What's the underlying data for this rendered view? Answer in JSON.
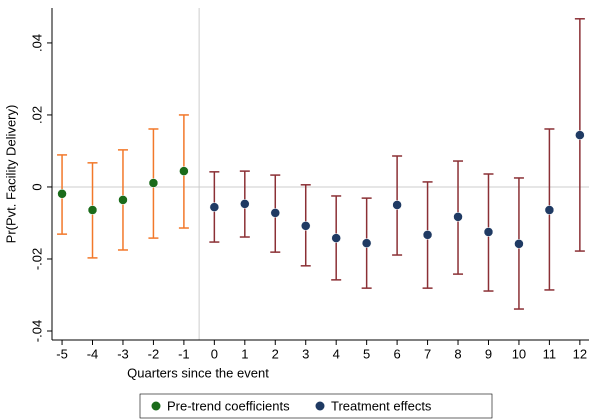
{
  "chart_data": {
    "type": "errorbar",
    "x_label": "Quarters since the event",
    "y_label": "Pr(Pvt. Facility Delivery)",
    "xlim": [
      -5.33,
      12.3
    ],
    "xticks": [
      -5,
      -4,
      -3,
      -2,
      -1,
      0,
      1,
      2,
      3,
      4,
      5,
      6,
      7,
      8,
      9,
      10,
      11,
      12
    ],
    "ylim": [
      -0.0425,
      0.0497
    ],
    "yticks": [
      {
        "value": -0.04,
        "label": "-.04"
      },
      {
        "value": -0.02,
        "label": "-.02"
      },
      0,
      {
        "value": 0.02,
        "label": ".02"
      },
      {
        "value": 0.04,
        "label": ".04"
      }
    ],
    "vline": -0.5,
    "hline": 0,
    "series": [
      {
        "name": "Pre-trend coefficients",
        "color": "#1a6b1a",
        "ci_color": "#f2782a",
        "x": [
          -5,
          -4,
          -3,
          -2,
          -1
        ],
        "values": [
          -0.0019,
          -0.0064,
          -0.0036,
          0.0011,
          0.0044
        ],
        "lower": [
          -0.0131,
          -0.0197,
          -0.0175,
          -0.0142,
          -0.0114
        ],
        "upper": [
          0.0089,
          0.0067,
          0.0103,
          0.0161,
          0.02
        ]
      },
      {
        "name": "Treatment effects",
        "color": "#1f3a63",
        "ci_color": "#8b3035",
        "x": [
          0,
          1,
          2,
          3,
          4,
          5,
          6,
          7,
          8,
          9,
          10,
          11,
          12
        ],
        "values": [
          -0.0056,
          -0.0047,
          -0.0072,
          -0.0108,
          -0.0142,
          -0.0156,
          -0.005,
          -0.0133,
          -0.0083,
          -0.0125,
          -0.0158,
          -0.0064,
          0.0144
        ],
        "lower": [
          -0.0153,
          -0.0139,
          -0.0181,
          -0.0219,
          -0.0258,
          -0.0281,
          -0.0189,
          -0.0281,
          -0.0242,
          -0.0289,
          -0.0339,
          -0.0286,
          -0.0178
        ],
        "upper": [
          0.0042,
          0.0044,
          0.0033,
          0.0006,
          -0.0025,
          -0.0031,
          0.0086,
          0.0014,
          0.0072,
          0.0036,
          0.0025,
          0.0161,
          0.0467
        ]
      }
    ]
  }
}
